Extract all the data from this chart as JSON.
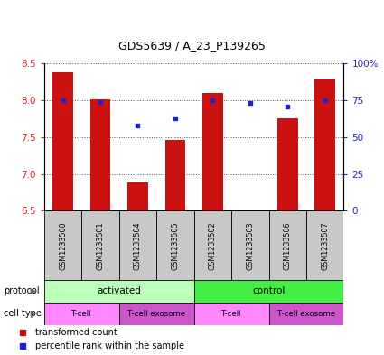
{
  "title": "GDS5639 / A_23_P139265",
  "samples": [
    "GSM1233500",
    "GSM1233501",
    "GSM1233504",
    "GSM1233505",
    "GSM1233502",
    "GSM1233503",
    "GSM1233506",
    "GSM1233507"
  ],
  "transformed_counts": [
    8.38,
    8.01,
    6.88,
    7.46,
    8.1,
    6.5,
    7.76,
    8.28
  ],
  "percentile_ranks": [
    75,
    74,
    58,
    63,
    75,
    73,
    71,
    75
  ],
  "ylim_left": [
    6.5,
    8.5
  ],
  "ylim_right": [
    0,
    100
  ],
  "yticks_left": [
    6.5,
    7.0,
    7.5,
    8.0,
    8.5
  ],
  "yticks_right": [
    0,
    25,
    50,
    75,
    100
  ],
  "ytick_labels_right": [
    "0",
    "25",
    "50",
    "75",
    "100%"
  ],
  "bar_color": "#cc1111",
  "dot_color": "#2222cc",
  "bar_width": 0.55,
  "protocol_groups": [
    {
      "label": "activated",
      "start": 0,
      "end": 4,
      "color": "#bbffbb"
    },
    {
      "label": "control",
      "start": 4,
      "end": 8,
      "color": "#44ee44"
    }
  ],
  "cell_type_groups": [
    {
      "label": "T-cell",
      "start": 0,
      "end": 2,
      "color": "#ff88ff"
    },
    {
      "label": "T-cell exosome",
      "start": 2,
      "end": 4,
      "color": "#cc55cc"
    },
    {
      "label": "T-cell",
      "start": 4,
      "end": 6,
      "color": "#ff88ff"
    },
    {
      "label": "T-cell exosome",
      "start": 6,
      "end": 8,
      "color": "#cc55cc"
    }
  ],
  "legend_red_label": "transformed count",
  "legend_blue_label": "percentile rank within the sample",
  "ylabel_left_color": "#dd2222",
  "ylabel_right_color": "#2222cc",
  "grid_color": "#555555",
  "background_plot": "#ffffff",
  "background_sample": "#c8c8c8",
  "fig_width": 4.25,
  "fig_height": 3.93,
  "dpi": 100
}
